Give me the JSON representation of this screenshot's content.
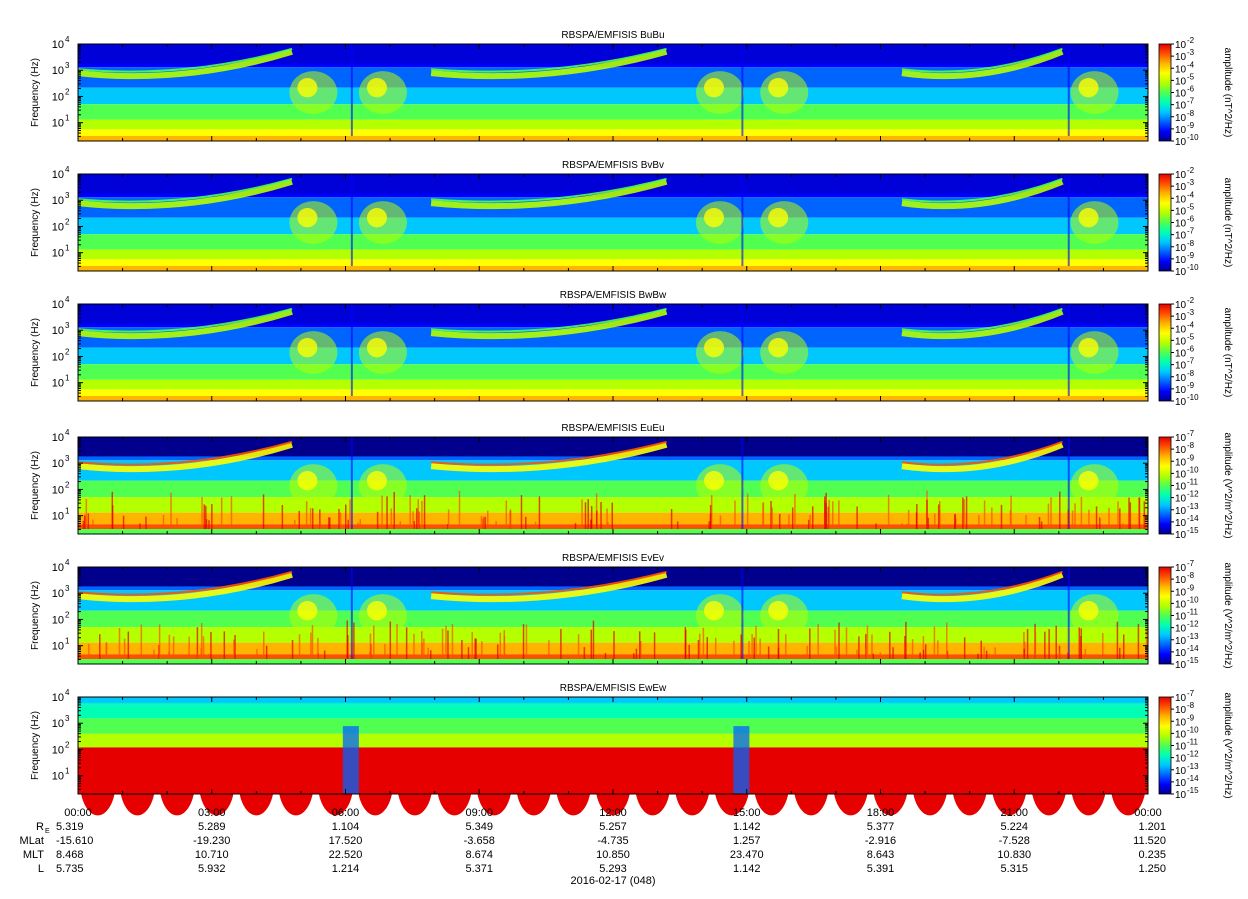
{
  "chart_data": {
    "type": "heatmap",
    "x_axis": {
      "ticks": [
        "00:00",
        "03:00",
        "06:00",
        "09:00",
        "12:00",
        "15:00",
        "18:00",
        "21:00",
        "00:00"
      ],
      "date_label": "2016-02-17 (048)"
    },
    "ephemeris": {
      "rows": [
        {
          "label": "R",
          "sub": "E",
          "values": [
            "5.319",
            "5.289",
            "1.104",
            "5.349",
            "5.257",
            "1.142",
            "5.377",
            "5.224",
            "1.201"
          ]
        },
        {
          "label": "MLat",
          "sub": "",
          "values": [
            "-15.610",
            "-19.230",
            "17.520",
            "-3.658",
            "-4.735",
            "1.257",
            "-2.916",
            "-7.528",
            "11.520"
          ]
        },
        {
          "label": "MLT",
          "sub": "",
          "values": [
            "8.468",
            "10.710",
            "22.520",
            "8.674",
            "10.850",
            "23.470",
            "8.643",
            "10.830",
            "0.235"
          ]
        },
        {
          "label": "L",
          "sub": "",
          "values": [
            "5.735",
            "5.932",
            "1.214",
            "5.371",
            "5.293",
            "1.142",
            "5.391",
            "5.315",
            "1.250"
          ]
        }
      ]
    },
    "panels": [
      {
        "title": "RBSPA/EMFISIS  BuBu",
        "ylabel": "Frequency (Hz)",
        "yticks": [
          "10",
          "10",
          "10",
          "10"
        ],
        "yexp": [
          "1",
          "2",
          "3",
          "4"
        ],
        "ylim": [
          2,
          10000
        ],
        "ylog": true,
        "cbar_label": "amplitude (nT^2/Hz)",
        "cbar_ticks": [
          "10",
          "10",
          "10",
          "10",
          "10",
          "10",
          "10",
          "10",
          "10"
        ],
        "cbar_exp": [
          "-2",
          "-3",
          "-4",
          "-5",
          "-6",
          "-7",
          "-8",
          "-9",
          "-10"
        ],
        "field": "B"
      },
      {
        "title": "RBSPA/EMFISIS  BvBv",
        "ylabel": "Frequency (Hz)",
        "yticks": [
          "10",
          "10",
          "10",
          "10"
        ],
        "yexp": [
          "1",
          "2",
          "3",
          "4"
        ],
        "ylim": [
          2,
          10000
        ],
        "ylog": true,
        "cbar_label": "amplitude (nT^2/Hz)",
        "cbar_ticks": [
          "10",
          "10",
          "10",
          "10",
          "10",
          "10",
          "10",
          "10",
          "10"
        ],
        "cbar_exp": [
          "-2",
          "-3",
          "-4",
          "-5",
          "-6",
          "-7",
          "-8",
          "-9",
          "-10"
        ],
        "field": "B"
      },
      {
        "title": "RBSPA/EMFISIS  BwBw",
        "ylabel": "Frequency (Hz)",
        "yticks": [
          "10",
          "10",
          "10",
          "10"
        ],
        "yexp": [
          "1",
          "2",
          "3",
          "4"
        ],
        "ylim": [
          2,
          10000
        ],
        "ylog": true,
        "cbar_label": "amplitude (nT^2/Hz)",
        "cbar_ticks": [
          "10",
          "10",
          "10",
          "10",
          "10",
          "10",
          "10",
          "10",
          "10"
        ],
        "cbar_exp": [
          "-2",
          "-3",
          "-4",
          "-5",
          "-6",
          "-7",
          "-8",
          "-9",
          "-10"
        ],
        "field": "B"
      },
      {
        "title": "RBSPA/EMFISIS  EuEu",
        "ylabel": "Frequency (Hz)",
        "yticks": [
          "10",
          "10",
          "10",
          "10"
        ],
        "yexp": [
          "1",
          "2",
          "3",
          "4"
        ],
        "ylim": [
          2,
          10000
        ],
        "ylog": true,
        "cbar_label": "amplitude (V^2/m^2/Hz)",
        "cbar_ticks": [
          "10",
          "10",
          "10",
          "10",
          "10",
          "10",
          "10",
          "10",
          "10"
        ],
        "cbar_exp": [
          "-7",
          "-8",
          "-9",
          "-10",
          "-11",
          "-12",
          "-13",
          "-14",
          "-15"
        ],
        "field": "E"
      },
      {
        "title": "RBSPA/EMFISIS  EvEv",
        "ylabel": "Frequency (Hz)",
        "yticks": [
          "10",
          "10",
          "10",
          "10"
        ],
        "yexp": [
          "1",
          "2",
          "3",
          "4"
        ],
        "ylim": [
          2,
          10000
        ],
        "ylog": true,
        "cbar_label": "amplitude (V^2/m^2/Hz)",
        "cbar_ticks": [
          "10",
          "10",
          "10",
          "10",
          "10",
          "10",
          "10",
          "10",
          "10"
        ],
        "cbar_exp": [
          "-7",
          "-8",
          "-9",
          "-10",
          "-11",
          "-12",
          "-13",
          "-14",
          "-15"
        ],
        "field": "E"
      },
      {
        "title": "RBSPA/EMFISIS  EwEw",
        "ylabel": "Frequency (Hz)",
        "yticks": [
          "10",
          "10",
          "10",
          "10"
        ],
        "yexp": [
          "1",
          "2",
          "3",
          "4"
        ],
        "ylim": [
          2,
          10000
        ],
        "ylog": true,
        "cbar_label": "amplitude (V^2/m^2/Hz)",
        "cbar_ticks": [
          "10",
          "10",
          "10",
          "10",
          "10",
          "10",
          "10",
          "10",
          "10"
        ],
        "cbar_exp": [
          "-7",
          "-8",
          "-9",
          "-10",
          "-11",
          "-12",
          "-13",
          "-14",
          "-15"
        ],
        "field": "Ew"
      }
    ],
    "colormap": [
      "#00008c",
      "#0000ff",
      "#0064ff",
      "#00c8ff",
      "#00ffb4",
      "#50ff50",
      "#b4ff00",
      "#ffff00",
      "#ffb400",
      "#ff5000",
      "#e60000"
    ]
  }
}
